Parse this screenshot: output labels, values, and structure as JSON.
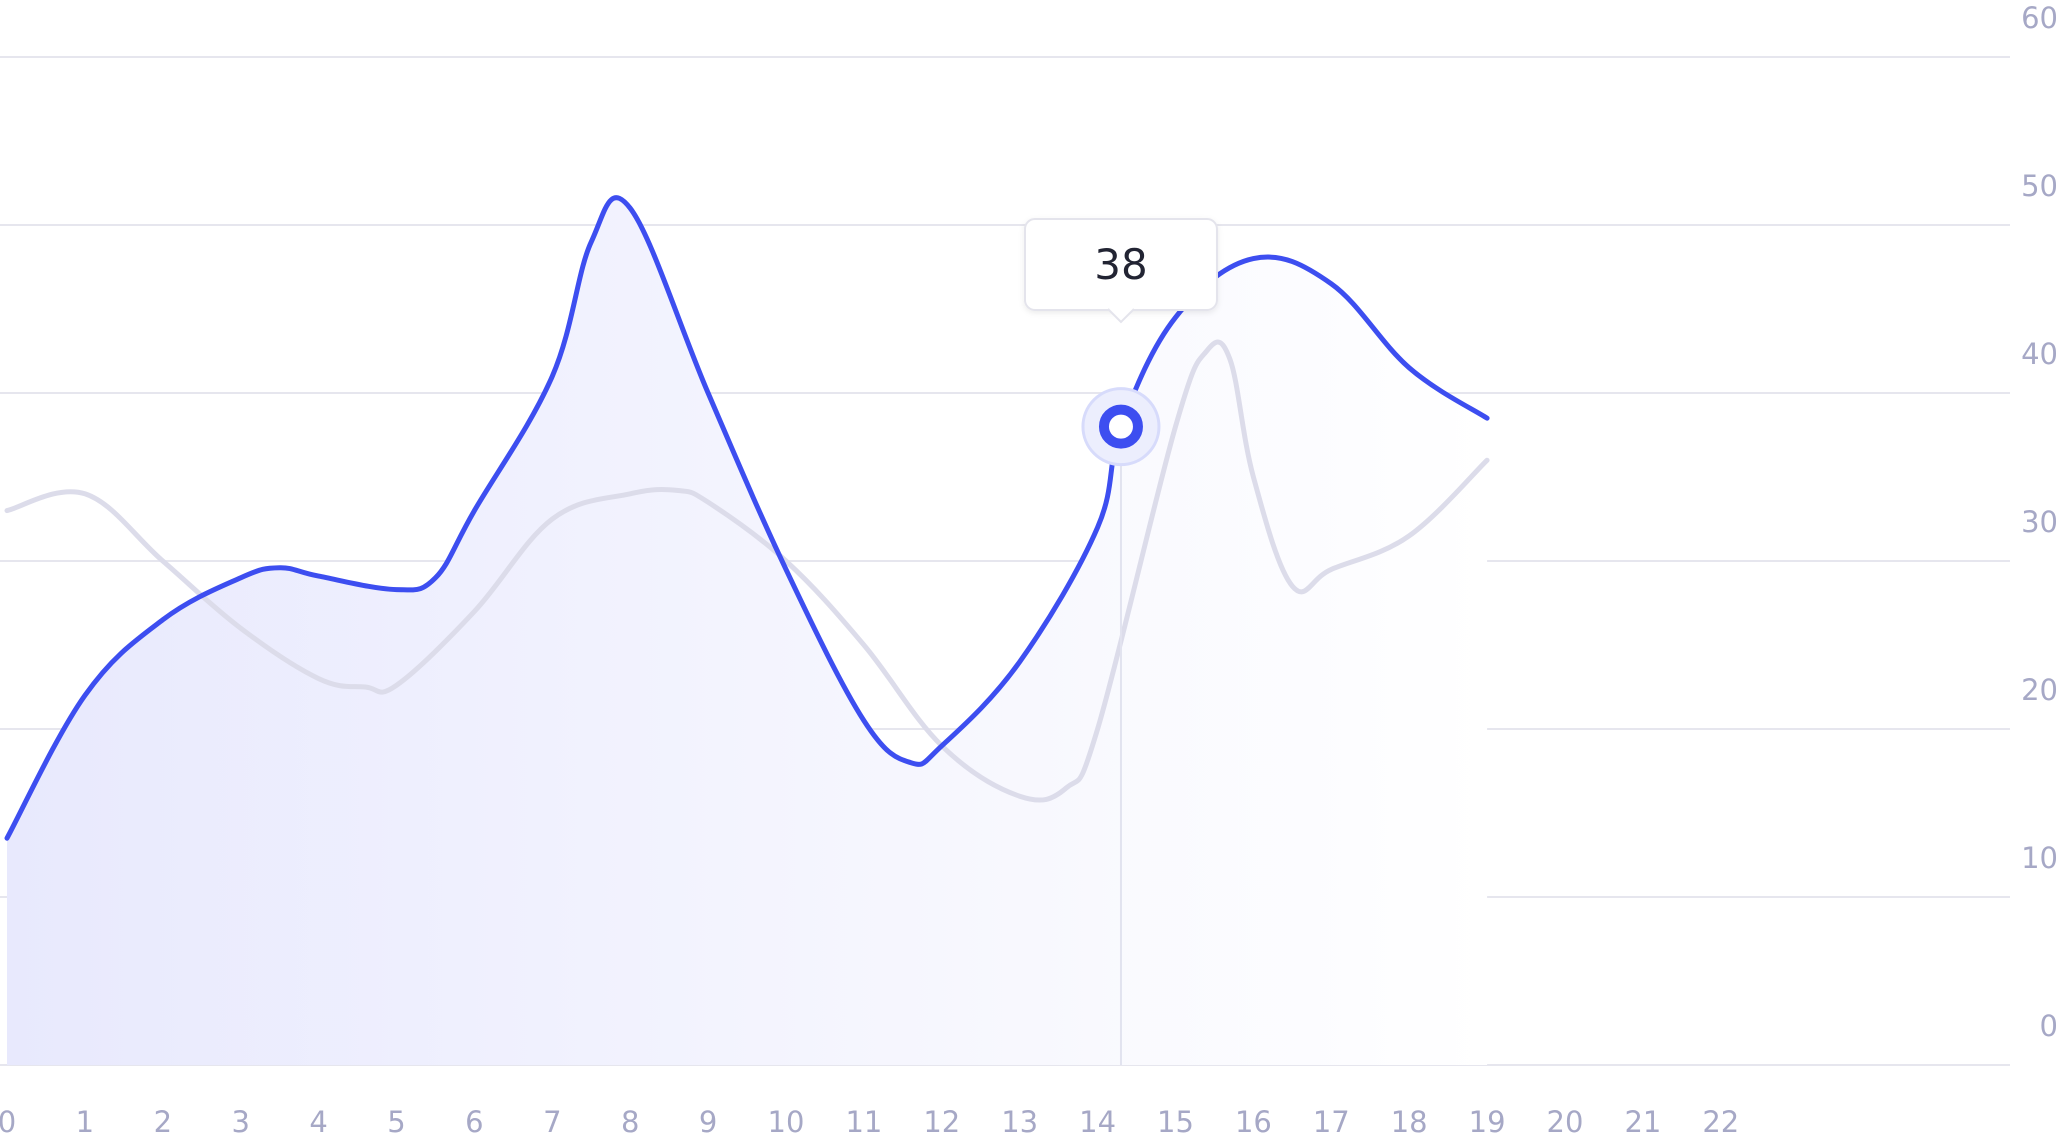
{
  "chart_data": {
    "type": "area",
    "x_tick_labels": [
      "0",
      "1",
      "2",
      "3",
      "4",
      "5",
      "6",
      "7",
      "8",
      "9",
      "10",
      "11",
      "12",
      "13",
      "14",
      "15",
      "16",
      "17",
      "18",
      "19",
      "20",
      "21",
      "22"
    ],
    "y_tick_labels": [
      "0",
      "10",
      "20",
      "30",
      "40",
      "50",
      "60"
    ],
    "ylim": [
      0,
      60
    ],
    "y_axis_side": "right",
    "grid": "horizontal",
    "legend": "none",
    "series": [
      {
        "role": "primary",
        "color": "#3d4ef0",
        "fill": "gradient",
        "x": [
          0,
          1,
          2,
          3,
          3.5,
          4,
          5,
          5.5,
          6,
          7,
          7.5,
          8,
          9,
          10,
          11,
          11.6,
          12,
          13,
          14,
          14.3,
          15,
          16,
          17,
          18,
          19
        ],
        "y": [
          13.5,
          22,
          26.5,
          29,
          29.6,
          29.1,
          28.3,
          29,
          33,
          41,
          49,
          51,
          40,
          29.5,
          20.5,
          18,
          19,
          24,
          32,
          38,
          44.5,
          48,
          46.5,
          41.5,
          38.5
        ]
      },
      {
        "role": "comparison",
        "color": "#dcdcea",
        "fill": "none",
        "x": [
          0,
          1,
          2,
          3,
          4,
          4.6,
          5,
          6,
          7,
          8,
          8.6,
          9,
          10,
          11,
          12,
          13,
          13.6,
          14,
          15,
          15.4,
          15.7,
          16,
          16.5,
          17,
          18,
          19
        ],
        "y": [
          33,
          34,
          30,
          26,
          23,
          22.5,
          22.6,
          27,
          32.5,
          34,
          34.2,
          33.5,
          30,
          25,
          19,
          16,
          16.5,
          20,
          38,
          42.5,
          42,
          35,
          28.5,
          29.5,
          31.5,
          36
        ]
      }
    ],
    "tooltip": {
      "x": 14.3,
      "value": "38"
    }
  }
}
